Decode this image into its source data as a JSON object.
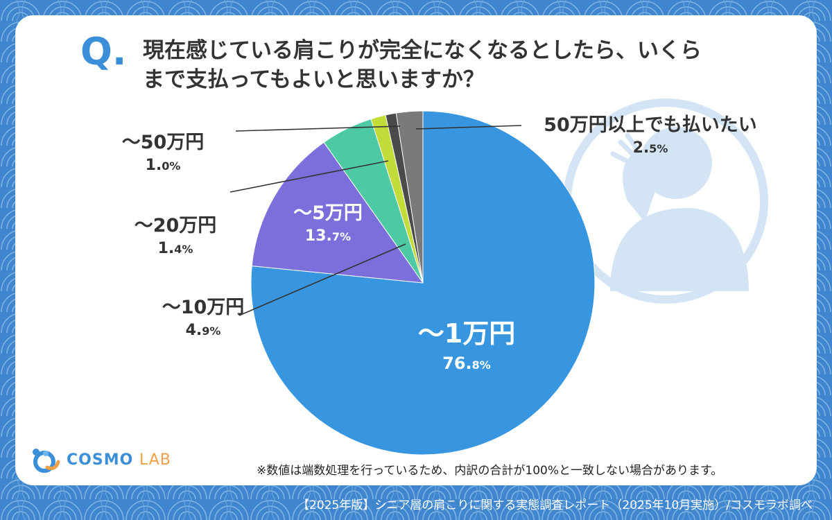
{
  "question": {
    "mark": "Q.",
    "line1": "現在感じている肩こりが完全になくなるとしたら、いくら",
    "line2": "まで支払ってもよいと思いますか？"
  },
  "chart_data": {
    "type": "pie",
    "title": "現在感じている肩こりが完全になくなるとしたら、いくらまで支払ってもよいと思いますか？",
    "slices": [
      {
        "label": "〜1万円",
        "value": 76.8,
        "color": "#3896e0"
      },
      {
        "label": "〜5万円",
        "value": 13.7,
        "color": "#7b6fdc"
      },
      {
        "label": "〜10万円",
        "value": 4.9,
        "color": "#4dcaa4"
      },
      {
        "label": "〜20万円",
        "value": 1.4,
        "color": "#c4dc3a"
      },
      {
        "label": "〜50万円",
        "value": 1.0,
        "color": "#4a4a4a"
      },
      {
        "label": "50万円以上でも払いたい",
        "value": 2.5,
        "color": "#7a7a7a"
      }
    ]
  },
  "labels": {
    "s0": {
      "name": "〜1万円",
      "int": "76.",
      "dec": "8%"
    },
    "s1": {
      "name": "〜5万円",
      "int": "13.",
      "dec": "7%"
    },
    "s2": {
      "name": "〜10万円",
      "int": "4.",
      "dec": "9%"
    },
    "s3": {
      "name": "〜20万円",
      "int": "1.",
      "dec": "4%"
    },
    "s4": {
      "name": "〜50万円",
      "int": "1.",
      "dec": "0%"
    },
    "s5": {
      "name": "50万円以上でも払いたい",
      "int": "2.",
      "dec": "5%"
    }
  },
  "note": "※数値は端数処理を行っているため、内訳の合計が100%と一致しない場合があります。",
  "logo": {
    "main": "COSMO",
    "lab": "LAB"
  },
  "source": "【2025年版】シニア層の肩こりに関する実態調査レポート（2025年10月実施）/コスモラボ調べ",
  "colors": {
    "background": "#3f86cf",
    "accent": "#3a8fd8",
    "card": "#ffffff"
  }
}
